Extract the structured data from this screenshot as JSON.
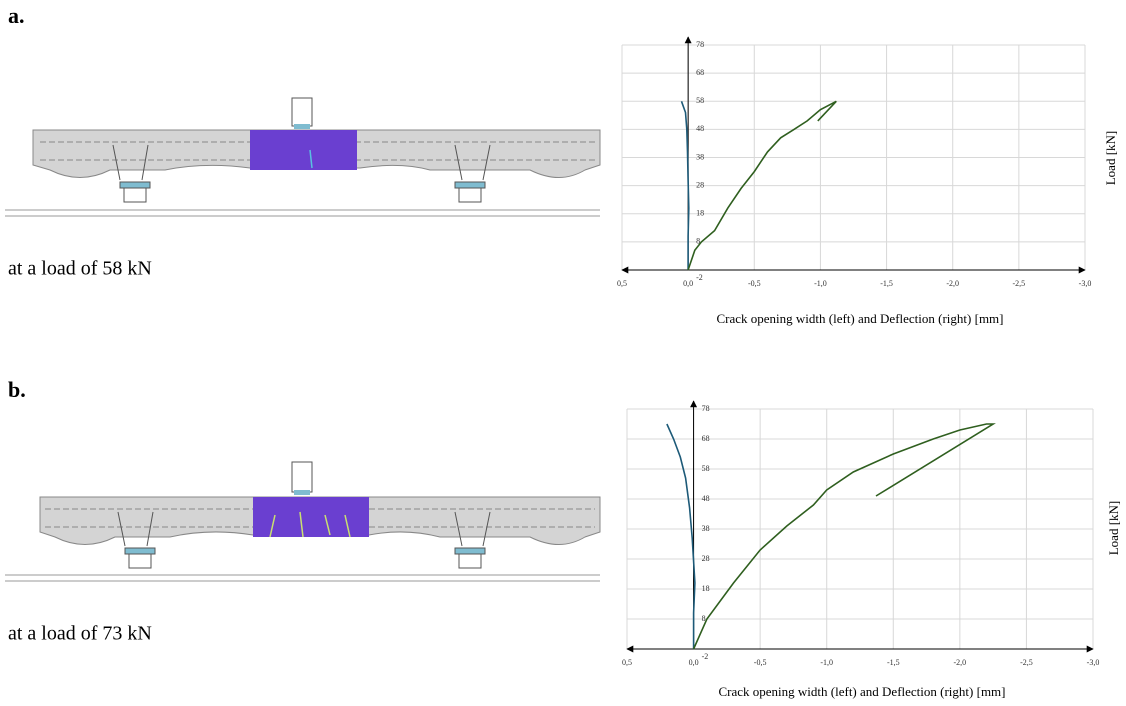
{
  "chart_data": [
    {
      "type": "line",
      "panel_label": "a.",
      "caption": "at a load of 58 kN",
      "x_label": "Crack opening width (left) and Deflection (right) [mm]",
      "y_label": "Load [kN]",
      "xlim": [
        0.5,
        -3.0
      ],
      "xticks": [
        {
          "value": 0.5,
          "label": "0,5"
        },
        {
          "value": 0,
          "label": "0,0"
        },
        {
          "value": -0.5,
          "label": "-0,5"
        },
        {
          "value": -1.0,
          "label": "-1,0"
        },
        {
          "value": -1.5,
          "label": "-1,5"
        },
        {
          "value": -2.0,
          "label": "-2,0"
        },
        {
          "value": -2.5,
          "label": "-2,5"
        },
        {
          "value": -3.0,
          "label": "-3,0"
        }
      ],
      "ylim": [
        -2,
        78
      ],
      "yticks": [
        -2,
        8,
        18,
        28,
        38,
        48,
        58,
        68,
        78
      ],
      "grid": true,
      "series": [
        {
          "color": "#1d5a78",
          "x": [
            0,
            0,
            -0.005,
            0,
            0.005,
            0.01,
            0.02,
            0.05
          ],
          "values": [
            -2,
            10,
            20,
            30,
            40,
            48,
            54,
            58
          ]
        },
        {
          "color": "#2f5f1f",
          "x": [
            0,
            -0.05,
            -0.1,
            -0.2,
            -0.3,
            -0.4,
            -0.5,
            -0.6,
            -0.7,
            -0.8,
            -0.9,
            -1.0,
            -1.12,
            -0.98
          ],
          "values": [
            -2,
            5,
            8,
            12,
            20,
            27,
            33,
            40,
            45,
            48,
            51,
            55,
            58,
            51
          ]
        }
      ]
    },
    {
      "type": "line",
      "panel_label": "b.",
      "caption": "at a load of 73 kN",
      "x_label": "Crack opening width (left) and Deflection (right) [mm]",
      "y_label": "Load [kN]",
      "xlim": [
        0.5,
        -3.0
      ],
      "xticks": [
        {
          "value": 0.5,
          "label": "0,5"
        },
        {
          "value": 0,
          "label": "0,0"
        },
        {
          "value": -0.5,
          "label": "-0,5"
        },
        {
          "value": -1.0,
          "label": "-1,0"
        },
        {
          "value": -1.5,
          "label": "-1,5"
        },
        {
          "value": -2.0,
          "label": "-2,0"
        },
        {
          "value": -2.5,
          "label": "-2,5"
        },
        {
          "value": -3.0,
          "label": "-3,0"
        }
      ],
      "ylim": [
        -2,
        78
      ],
      "yticks": [
        -2,
        8,
        18,
        28,
        38,
        48,
        58,
        68,
        78
      ],
      "grid": true,
      "series": [
        {
          "color": "#1d5a78",
          "x": [
            0,
            0,
            -0.01,
            0.01,
            0.03,
            0.06,
            0.1,
            0.15,
            0.2
          ],
          "values": [
            -2,
            10,
            20,
            35,
            45,
            55,
            62,
            68,
            73
          ]
        },
        {
          "color": "#2f5f1f",
          "x": [
            0,
            -0.1,
            -0.3,
            -0.5,
            -0.7,
            -0.9,
            -1.0,
            -1.2,
            -1.5,
            -1.8,
            -2.0,
            -2.2,
            -2.25,
            -1.37
          ],
          "values": [
            -2,
            8,
            20,
            31,
            39,
            46,
            51,
            57,
            63,
            68,
            71,
            73,
            73,
            49
          ]
        }
      ]
    }
  ]
}
